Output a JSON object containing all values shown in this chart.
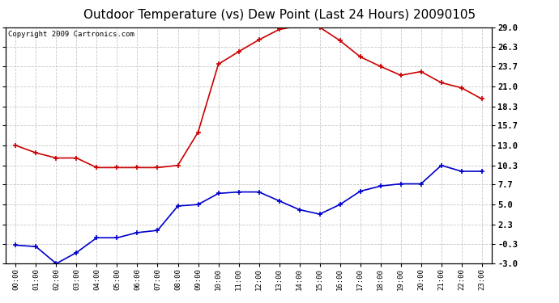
{
  "title": "Outdoor Temperature (vs) Dew Point (Last 24 Hours) 20090105",
  "copyright": "Copyright 2009 Cartronics.com",
  "hours": [
    "00:00",
    "01:00",
    "02:00",
    "03:00",
    "04:00",
    "05:00",
    "06:00",
    "07:00",
    "08:00",
    "09:00",
    "10:00",
    "11:00",
    "12:00",
    "13:00",
    "14:00",
    "15:00",
    "16:00",
    "17:00",
    "18:00",
    "19:00",
    "20:00",
    "21:00",
    "22:00",
    "23:00"
  ],
  "temp_red": [
    13.0,
    12.0,
    11.3,
    11.3,
    10.0,
    10.0,
    10.0,
    10.0,
    10.3,
    14.8,
    24.0,
    25.7,
    27.3,
    28.7,
    29.2,
    29.0,
    27.2,
    25.0,
    23.7,
    22.5,
    23.0,
    21.5,
    20.8,
    19.3
  ],
  "dew_blue": [
    -0.5,
    -0.7,
    -3.0,
    -1.5,
    0.5,
    0.5,
    1.2,
    1.5,
    4.8,
    5.0,
    6.5,
    6.7,
    6.7,
    5.5,
    4.3,
    3.7,
    5.0,
    6.8,
    7.5,
    7.8,
    7.8,
    10.3,
    9.5,
    9.5
  ],
  "ylim": [
    -3.0,
    29.0
  ],
  "yticks": [
    29.0,
    26.3,
    23.7,
    21.0,
    18.3,
    15.7,
    13.0,
    10.3,
    7.7,
    5.0,
    2.3,
    -0.3,
    -3.0
  ],
  "red_color": "#cc0000",
  "blue_color": "#0000cc",
  "bg_color": "#ffffff",
  "grid_color": "#c8c8c8",
  "title_fontsize": 11,
  "copyright_fontsize": 6.5
}
